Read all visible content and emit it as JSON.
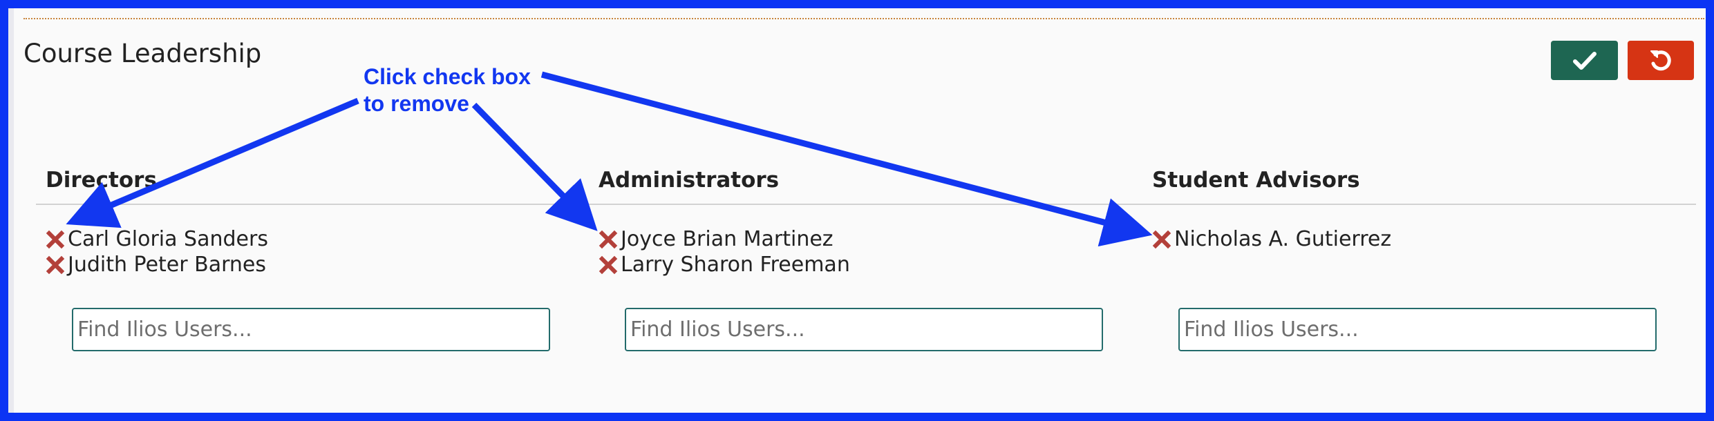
{
  "header": {
    "title": "Course Leadership",
    "save_icon": "check-icon",
    "cancel_icon": "undo-icon",
    "save_color": "#1e6652",
    "cancel_color": "#d63414"
  },
  "annotation": {
    "lines": [
      "Click check box",
      "to remove"
    ],
    "color": "#1237f0"
  },
  "columns": [
    {
      "heading": "Directors",
      "users": [
        "Carl Gloria Sanders",
        "Judith Peter Barnes"
      ],
      "search_placeholder": "Find Ilios Users..."
    },
    {
      "heading": "Administrators",
      "users": [
        "Joyce Brian Martinez",
        "Larry Sharon Freeman"
      ],
      "search_placeholder": "Find Ilios Users..."
    },
    {
      "heading": "Student Advisors",
      "users": [
        "Nicholas A. Gutierrez"
      ],
      "search_placeholder": "Find Ilios Users..."
    }
  ],
  "colors": {
    "frame_border": "#0b34f4",
    "remove_icon": "#b3403a",
    "input_border": "#236b6b"
  }
}
